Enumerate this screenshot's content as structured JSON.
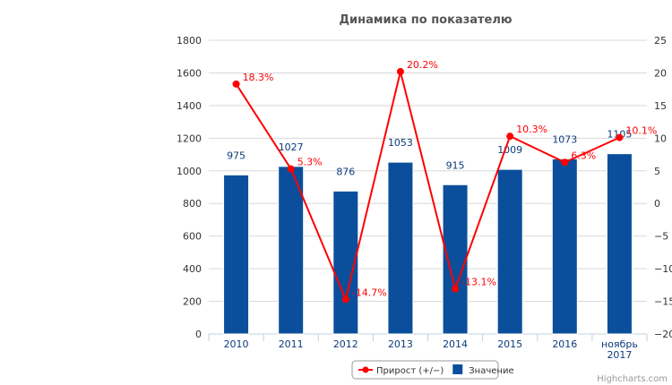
{
  "chart_data": {
    "type": "bar-line",
    "title": "Динамика по показателю",
    "categories": [
      "2010",
      "2011",
      "2012",
      "2013",
      "2014",
      "2015",
      "2016",
      "ноябрь 2017"
    ],
    "ylim": [
      0,
      1800
    ],
    "yticks": [
      0,
      200,
      400,
      600,
      800,
      1000,
      1200,
      1400,
      1600,
      1800
    ],
    "y2lim": [
      -20,
      25
    ],
    "y2ticks": [
      {
        "value": -20,
        "label": "−20"
      },
      {
        "value": -15,
        "label": "−15"
      },
      {
        "value": -10,
        "label": "−10"
      },
      {
        "value": -5,
        "label": "−5"
      },
      0,
      5,
      10,
      15,
      20,
      25
    ],
    "grid": true,
    "legend": "bottom",
    "series": [
      {
        "name": "Прирост (+/−)",
        "color": "#ff0000",
        "axis": "y2",
        "kind": "line",
        "values": [
          18.3,
          5.3,
          -14.7,
          20.2,
          -13.1,
          10.3,
          6.3,
          10.1
        ],
        "value_labels": [
          "18.3%",
          "5.3%",
          "-14.7%",
          "20.2%",
          "-13.1%",
          "10.3%",
          "6.3%",
          "10.1%"
        ]
      },
      {
        "name": "Значение",
        "color": "#0b4f9c",
        "kind": "bar",
        "values": [
          975,
          1027,
          876,
          1053,
          915,
          1009,
          1073,
          1105
        ]
      }
    ],
    "credit": "Highcharts.com"
  }
}
